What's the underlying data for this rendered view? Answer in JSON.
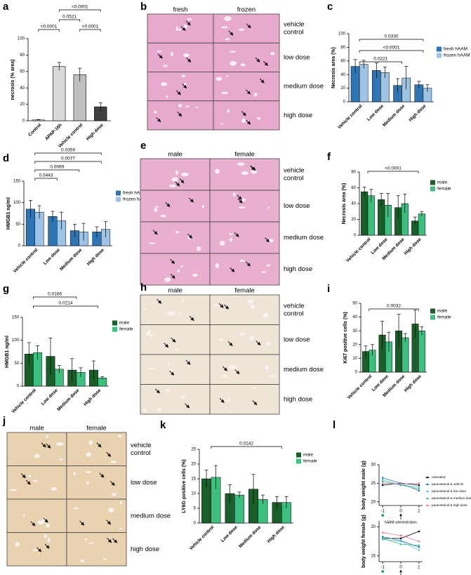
{
  "chart_data": [
    {
      "type": "bar",
      "label": "a",
      "ylabel": "necrosis (% area)",
      "categories": [
        "Control",
        "APAP-16h",
        "Vehicle control",
        "High dose"
      ],
      "values": [
        1,
        66,
        56,
        17
      ],
      "errors": [
        0.5,
        5,
        8,
        5
      ],
      "colors": [
        "#ffffff",
        "#d9d9d9",
        "#bfbfbf",
        "#404040"
      ],
      "ylim": [
        0,
        100
      ],
      "yticks": [
        0,
        20,
        40,
        60,
        80,
        100
      ],
      "brackets": [
        {
          "from": 1,
          "to": 3,
          "label": "<0.0001"
        },
        {
          "from": 1,
          "to": 2,
          "label": "0.0521"
        },
        {
          "from": 0,
          "to": 1,
          "label": "<0.0001"
        },
        {
          "from": 2,
          "to": 3,
          "label": "<0.0001"
        }
      ]
    },
    {
      "type": "grouped_bar",
      "label": "c",
      "ylabel": "Necrosis area (%)",
      "categories": [
        "Vehicle control",
        "Low dose",
        "Medium dose",
        "High dose"
      ],
      "series": [
        {
          "name": "fresh hAAM",
          "color": "#2e75b6",
          "values": [
            52,
            46,
            24,
            25
          ],
          "errors": [
            10,
            11,
            10,
            5
          ]
        },
        {
          "name": "frozen hAAM",
          "color": "#9dc3e6",
          "values": [
            55,
            43,
            35,
            20
          ],
          "errors": [
            6,
            8,
            17,
            5
          ]
        }
      ],
      "ylim": [
        0,
        100
      ],
      "yticks": [
        0,
        20,
        40,
        60,
        80,
        100
      ],
      "brackets": [
        {
          "from": 0,
          "to": 3,
          "label": "0.0330"
        },
        {
          "from": 0,
          "to": 3,
          "label": "<0.0001"
        },
        {
          "from": 0,
          "to": 2,
          "label": "0.0221"
        }
      ]
    },
    {
      "type": "grouped_bar",
      "label": "d",
      "ylabel": "HMGB1 ng/ml",
      "categories": [
        "Vehicle control",
        "Low dose",
        "Medium dose",
        "High dose"
      ],
      "series": [
        {
          "name": "fresh hAAM",
          "color": "#2e75b6",
          "values": [
            85,
            68,
            35,
            32
          ],
          "errors": [
            20,
            12,
            15,
            12
          ]
        },
        {
          "name": "frozen hAAM",
          "color": "#9dc3e6",
          "values": [
            78,
            58,
            32,
            38
          ],
          "errors": [
            15,
            20,
            20,
            18
          ]
        }
      ],
      "ylim": [
        0,
        150
      ],
      "yticks": [
        0,
        50,
        100,
        150
      ],
      "brackets": [
        {
          "from": 0,
          "to": 3,
          "label": "0.0359"
        },
        {
          "from": 0,
          "to": 3,
          "label": "0.0077"
        },
        {
          "from": 0,
          "to": 2,
          "label": "0.0069"
        },
        {
          "from": 0,
          "to": 1,
          "label": "0.0443"
        }
      ]
    },
    {
      "type": "grouped_bar",
      "label": "f",
      "ylabel": "Necrosis area (%)",
      "categories": [
        "Vehicle control",
        "Low dose",
        "Medium dose",
        "High dose"
      ],
      "series": [
        {
          "name": "male",
          "color": "#1a5e2a",
          "values": [
            55,
            45,
            35,
            18
          ],
          "errors": [
            6,
            8,
            15,
            5
          ]
        },
        {
          "name": "female",
          "color": "#3dbf7f",
          "values": [
            50,
            38,
            40,
            27
          ],
          "errors": [
            8,
            15,
            12,
            3
          ]
        }
      ],
      "ylim": [
        0,
        80
      ],
      "yticks": [
        0,
        20,
        40,
        60,
        80
      ],
      "brackets": [
        {
          "from": 0,
          "to": 3,
          "label": "<0.0001"
        }
      ]
    },
    {
      "type": "grouped_bar",
      "label": "g",
      "ylabel": "HMGB1 ng/ml",
      "categories": [
        "Vehicle control",
        "Low dose",
        "Medium dose",
        "High dose"
      ],
      "series": [
        {
          "name": "male",
          "color": "#1a5e2a",
          "values": [
            70,
            65,
            35,
            35
          ],
          "errors": [
            25,
            40,
            25,
            20
          ]
        },
        {
          "name": "female",
          "color": "#3dbf7f",
          "values": [
            73,
            37,
            30,
            18
          ],
          "errors": [
            15,
            8,
            10,
            3
          ]
        }
      ],
      "ylim": [
        0,
        150
      ],
      "yticks": [
        0,
        50,
        100,
        150
      ],
      "brackets": [
        {
          "from": 0,
          "to": 2,
          "label": "0.0166"
        },
        {
          "from": 0,
          "to": 3,
          "label": "0.0214"
        }
      ]
    },
    {
      "type": "grouped_bar",
      "label": "i",
      "ylabel": "Ki67 positive cells (%)",
      "categories": [
        "Vehicle control",
        "Low dose",
        "Medium dose",
        "High dose"
      ],
      "series": [
        {
          "name": "male",
          "color": "#1a5e2a",
          "values": [
            15,
            27,
            30,
            35
          ],
          "errors": [
            4,
            10,
            12,
            10
          ]
        },
        {
          "name": "female",
          "color": "#3dbf7f",
          "values": [
            16,
            22,
            25,
            30
          ],
          "errors": [
            4,
            7,
            3,
            3
          ]
        }
      ],
      "ylim": [
        0,
        50
      ],
      "yticks": [
        0,
        10,
        20,
        30,
        40,
        50
      ],
      "brackets": [
        {
          "from": 0,
          "to": 3,
          "label": "0.0032"
        }
      ]
    },
    {
      "type": "grouped_bar",
      "label": "k",
      "ylabel": "LY6G positive cells (%)",
      "categories": [
        "Vehicle control",
        "Low dose",
        "Medium dose",
        "High dose"
      ],
      "series": [
        {
          "name": "male",
          "color": "#1a5e2a",
          "values": [
            15,
            10,
            11.5,
            7
          ],
          "errors": [
            3,
            3,
            5,
            2
          ]
        },
        {
          "name": "female",
          "color": "#3dbf7f",
          "values": [
            15.5,
            9.5,
            8,
            7
          ],
          "errors": [
            4,
            1,
            1.5,
            2
          ]
        }
      ],
      "ylim": [
        0,
        25
      ],
      "yticks": [
        0,
        5,
        10,
        15,
        20,
        25
      ],
      "brackets": [
        {
          "from": 0,
          "to": 3,
          "label": "0.0142"
        }
      ]
    },
    {
      "type": "line",
      "label": "l",
      "ylabel": "body weight male (g)",
      "annotation": "hAAM administration",
      "x": [
        -1,
        0,
        1
      ],
      "xticks": [
        -1,
        0,
        1
      ],
      "xlim": [
        -1.2,
        1.2
      ],
      "ylim": [
        19,
        30
      ],
      "yticks": [
        20,
        25,
        30
      ],
      "series": [
        {
          "name": "untreated",
          "color": "#000000",
          "values": [
            24.5,
            25,
            24.5
          ]
        },
        {
          "name": "paracetamol & vehicle",
          "color": "#2e75b6",
          "values": [
            26.5,
            25,
            23
          ]
        },
        {
          "name": "paracetamol & low dose",
          "color": "#5bc0de",
          "values": [
            26,
            24.5,
            24
          ]
        },
        {
          "name": "paracetamol & medium dose",
          "color": "#3dbf7f",
          "values": [
            25.5,
            24.5,
            23.5
          ]
        },
        {
          "name": "paracetamol & high dose",
          "color": "#e377a0",
          "values": [
            25,
            24.8,
            25
          ]
        }
      ]
    },
    {
      "type": "line",
      "ylabel": "body weight female (g)",
      "annotation": "hAAM administration",
      "x": [
        -1,
        0,
        1
      ],
      "xticks": [
        -1,
        0,
        1
      ],
      "xlim": [
        -1.2,
        1.2
      ],
      "ylim": [
        14,
        21
      ],
      "yticks": [
        15,
        20
      ],
      "series": [
        {
          "color": "#000000",
          "values": [
            18,
            18,
            19.2
          ]
        },
        {
          "color": "#2e75b6",
          "values": [
            18.3,
            17.6,
            16.5
          ]
        },
        {
          "color": "#5bc0de",
          "values": [
            17.8,
            17.5,
            16
          ]
        },
        {
          "color": "#3dbf7f",
          "values": [
            18,
            17,
            16.8
          ]
        },
        {
          "color": "#e377a0",
          "values": [
            19,
            18.5,
            17.5
          ]
        }
      ]
    }
  ],
  "images": [
    {
      "label": "b",
      "columns": [
        "fresh",
        "frozen"
      ],
      "rows": [
        [
          "vehicle",
          "control"
        ],
        [
          "low dose"
        ],
        [
          "medium dose"
        ],
        [
          "high dose"
        ]
      ],
      "color": "#e7a9cc"
    },
    {
      "label": "e",
      "columns": [
        "male",
        "female"
      ],
      "rows": [
        [
          "vehicle",
          "control"
        ],
        [
          "low dose"
        ],
        [
          "medium dose"
        ],
        [
          "high dose"
        ]
      ],
      "color": "#e9afcf"
    },
    {
      "label": "h",
      "columns": [
        "male",
        "female"
      ],
      "rows": [
        [
          "vehicle",
          "control"
        ],
        [
          "low dose"
        ],
        [
          "medium dose"
        ],
        [
          "high dose"
        ]
      ],
      "color": "#eee5d6"
    },
    {
      "label": "j",
      "columns": [
        "male",
        "female"
      ],
      "rows": [
        [
          "vehicle",
          "control"
        ],
        [
          "low dose"
        ],
        [
          "medium dose"
        ],
        [
          "high dose"
        ]
      ],
      "color": "#e8d2b0"
    }
  ]
}
